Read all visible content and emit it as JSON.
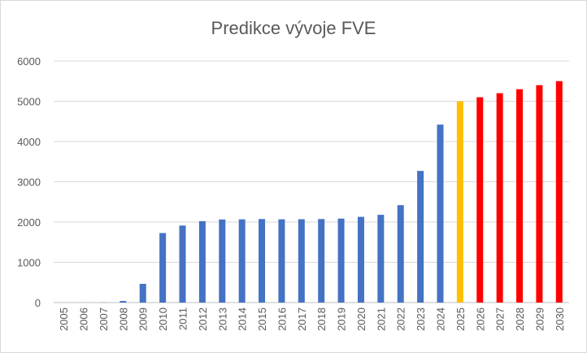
{
  "chart_data": {
    "type": "bar",
    "title": "Predikce vývoje FVE",
    "xlabel": "",
    "ylabel": "",
    "ylim": [
      0,
      6000
    ],
    "yticks": [
      0,
      1000,
      2000,
      3000,
      4000,
      5000,
      6000
    ],
    "grid": true,
    "legend": "none",
    "categories": [
      "2005",
      "2006",
      "2007",
      "2008",
      "2009",
      "2010",
      "2011",
      "2012",
      "2013",
      "2014",
      "2015",
      "2016",
      "2017",
      "2018",
      "2019",
      "2020",
      "2021",
      "2022",
      "2023",
      "2024",
      "2025",
      "2026",
      "2027",
      "2028",
      "2029",
      "2030"
    ],
    "values": [
      0,
      1,
      4,
      40,
      465,
      1727,
      1913,
      2022,
      2064,
      2067,
      2075,
      2068,
      2070,
      2075,
      2086,
      2129,
      2180,
      2420,
      3270,
      4420,
      5000,
      5100,
      5200,
      5300,
      5400,
      5500
    ],
    "colors": {
      "historical": "#4472c4",
      "current": "#ffc000",
      "forecast": "#ff0000",
      "grid": "#d9d9d9",
      "text": "#595959"
    },
    "bar_color_groups": [
      "historical",
      "historical",
      "historical",
      "historical",
      "historical",
      "historical",
      "historical",
      "historical",
      "historical",
      "historical",
      "historical",
      "historical",
      "historical",
      "historical",
      "historical",
      "historical",
      "historical",
      "historical",
      "historical",
      "historical",
      "current",
      "forecast",
      "forecast",
      "forecast",
      "forecast",
      "forecast"
    ]
  }
}
